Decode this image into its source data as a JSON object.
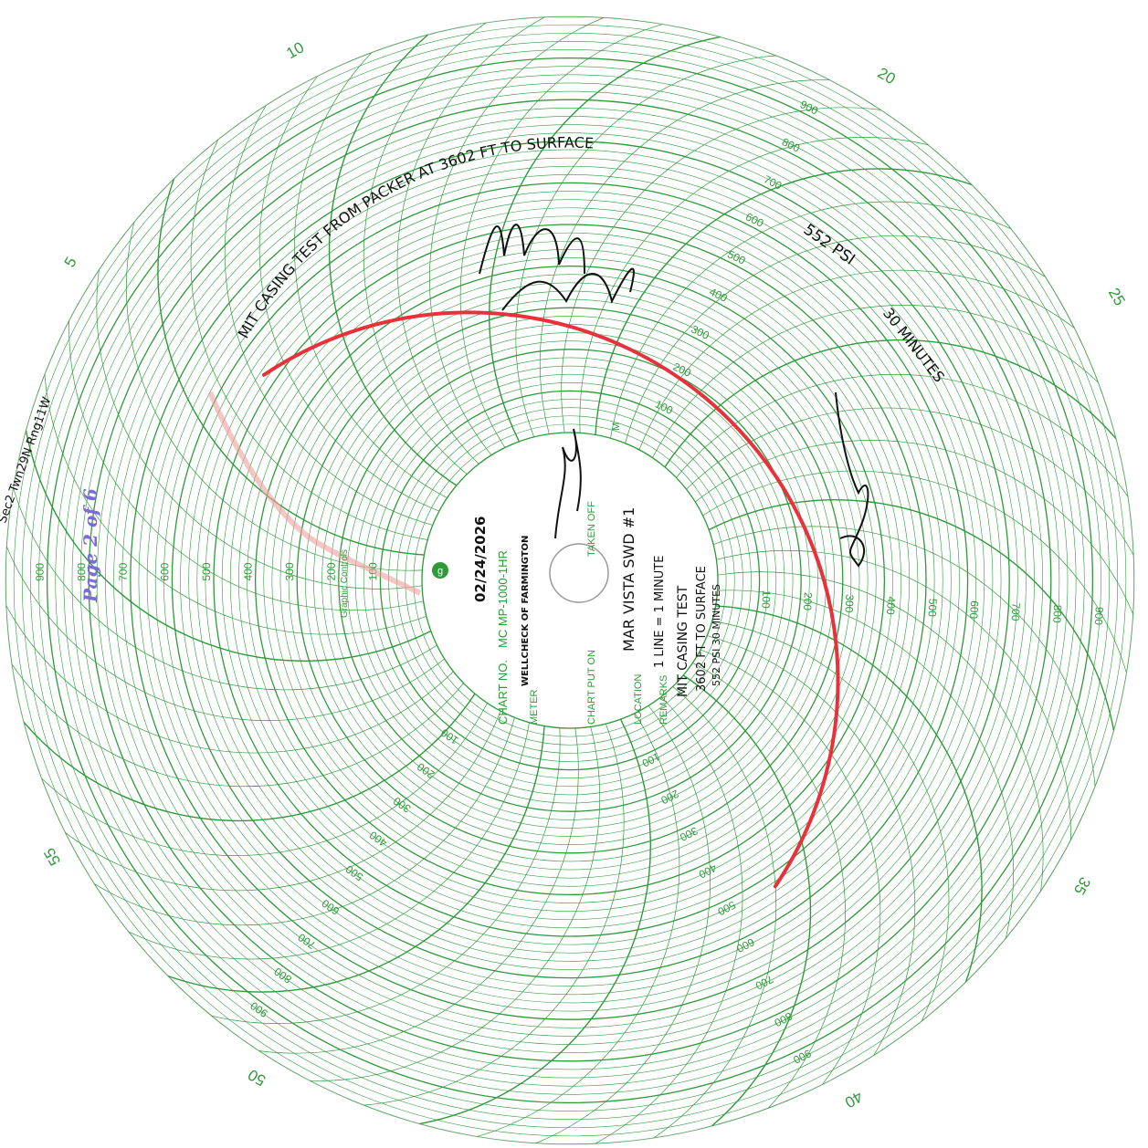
{
  "chart": {
    "brand": "Graphic Controls",
    "chart_no_label": "CHART NO.",
    "chart_no_value": "MC MP-1000-1HR",
    "meter_label": "METER",
    "meter_value": "WELLCHECK OF FARMINGTON",
    "chart_put_on_label": "CHART PUT ON",
    "taken_off_label": "TAKEN OFF",
    "m_label": "M",
    "location_label": "LOCATION",
    "location_value": "MAR VISTA SWD #1",
    "remarks_label": "REMARKS",
    "remarks_value": "1 LINE = 1 MINUTE",
    "date_value": "02/24/2026",
    "remarks_line2": "MIT CASING TEST",
    "remarks_line3": "3602 FT TO SURFACE",
    "remarks_line4": "552 PSI 30 MINUTES",
    "minute_labels": [
      "5",
      "10",
      "20",
      "25",
      "35",
      "40",
      "50",
      "55"
    ],
    "scale_labels": [
      "100",
      "200",
      "300",
      "400",
      "500",
      "600",
      "700",
      "800",
      "900"
    ]
  },
  "annotations": {
    "test_title": "MIT CASING TEST   FROM PACKER AT  3602 FT  TO  SURFACE",
    "psi": "552 PSI",
    "duration": "30 MINUTES",
    "margin_note": "Sec2  Twn29N  Rng11W",
    "page_stamp": "Page 2 of 6"
  },
  "chart_data": {
    "type": "circular pressure chart",
    "full_scale": 1000,
    "recorded_pressure": 552,
    "recorded_duration_minutes": 30
  }
}
